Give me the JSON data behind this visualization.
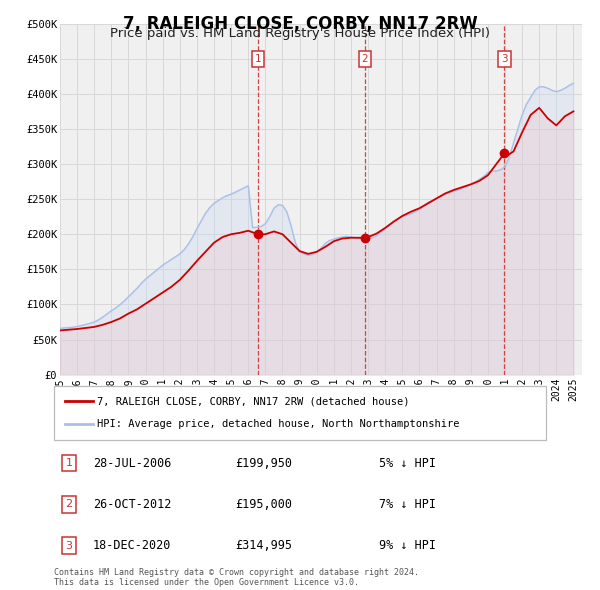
{
  "title": "7, RALEIGH CLOSE, CORBY, NN17 2RW",
  "subtitle": "Price paid vs. HM Land Registry's House Price Index (HPI)",
  "title_fontsize": 12,
  "subtitle_fontsize": 9.5,
  "xlim": [
    1995.0,
    2025.5
  ],
  "ylim": [
    0,
    500000
  ],
  "yticks": [
    0,
    50000,
    100000,
    150000,
    200000,
    250000,
    300000,
    350000,
    400000,
    450000,
    500000
  ],
  "ytick_labels": [
    "£0",
    "£50K",
    "£100K",
    "£150K",
    "£200K",
    "£250K",
    "£300K",
    "£350K",
    "£400K",
    "£450K",
    "£500K"
  ],
  "xticks": [
    1995,
    1996,
    1997,
    1998,
    1999,
    2000,
    2001,
    2002,
    2003,
    2004,
    2005,
    2006,
    2007,
    2008,
    2009,
    2010,
    2011,
    2012,
    2013,
    2014,
    2015,
    2016,
    2017,
    2018,
    2019,
    2020,
    2021,
    2022,
    2023,
    2024,
    2025
  ],
  "bg_color": "#ffffff",
  "plot_bg_color": "#f0f0f0",
  "grid_color": "#d8d8d8",
  "hpi_color": "#aabfe8",
  "hpi_fill_color": "#c8d8f0",
  "price_color": "#cc0000",
  "price_fill_color": "#f0c0c0",
  "sale_marker_color": "#cc0000",
  "vline_color": "#cc3333",
  "annotation_box_color": "#cc3333",
  "legend_label_price": "7, RALEIGH CLOSE, CORBY, NN17 2RW (detached house)",
  "legend_label_hpi": "HPI: Average price, detached house, North Northamptonshire",
  "sale_dates": [
    2006.57,
    2012.81,
    2020.96
  ],
  "sale_values": [
    199950,
    195000,
    314995
  ],
  "sale_labels": [
    "1",
    "2",
    "3"
  ],
  "sale_info": [
    {
      "label": "1",
      "date": "28-JUL-2006",
      "price": "£199,950",
      "diff": "5% ↓ HPI"
    },
    {
      "label": "2",
      "date": "26-OCT-2012",
      "price": "£195,000",
      "diff": "7% ↓ HPI"
    },
    {
      "label": "3",
      "date": "18-DEC-2020",
      "price": "£314,995",
      "diff": "9% ↓ HPI"
    }
  ],
  "footer": "Contains HM Land Registry data © Crown copyright and database right 2024.\nThis data is licensed under the Open Government Licence v3.0.",
  "hpi_x": [
    1995.0,
    1995.25,
    1995.5,
    1995.75,
    1996.0,
    1996.25,
    1996.5,
    1996.75,
    1997.0,
    1997.25,
    1997.5,
    1997.75,
    1998.0,
    1998.25,
    1998.5,
    1998.75,
    1999.0,
    1999.25,
    1999.5,
    1999.75,
    2000.0,
    2000.25,
    2000.5,
    2000.75,
    2001.0,
    2001.25,
    2001.5,
    2001.75,
    2002.0,
    2002.25,
    2002.5,
    2002.75,
    2003.0,
    2003.25,
    2003.5,
    2003.75,
    2004.0,
    2004.25,
    2004.5,
    2004.75,
    2005.0,
    2005.25,
    2005.5,
    2005.75,
    2006.0,
    2006.25,
    2006.5,
    2006.75,
    2007.0,
    2007.25,
    2007.5,
    2007.75,
    2008.0,
    2008.25,
    2008.5,
    2008.75,
    2009.0,
    2009.25,
    2009.5,
    2009.75,
    2010.0,
    2010.25,
    2010.5,
    2010.75,
    2011.0,
    2011.25,
    2011.5,
    2011.75,
    2012.0,
    2012.25,
    2012.5,
    2012.75,
    2013.0,
    2013.25,
    2013.5,
    2013.75,
    2014.0,
    2014.25,
    2014.5,
    2014.75,
    2015.0,
    2015.25,
    2015.5,
    2015.75,
    2016.0,
    2016.25,
    2016.5,
    2016.75,
    2017.0,
    2017.25,
    2017.5,
    2017.75,
    2018.0,
    2018.25,
    2018.5,
    2018.75,
    2019.0,
    2019.25,
    2019.5,
    2019.75,
    2020.0,
    2020.25,
    2020.5,
    2020.75,
    2021.0,
    2021.25,
    2021.5,
    2021.75,
    2022.0,
    2022.25,
    2022.5,
    2022.75,
    2023.0,
    2023.25,
    2023.5,
    2023.75,
    2024.0,
    2024.25,
    2024.5,
    2024.75,
    2025.0
  ],
  "hpi_y": [
    66000,
    66500,
    67000,
    67500,
    68500,
    70000,
    71500,
    73000,
    75000,
    78000,
    82000,
    86500,
    91000,
    95000,
    99500,
    105000,
    111000,
    117000,
    123000,
    130000,
    136000,
    141000,
    146000,
    151000,
    156000,
    160000,
    164000,
    168000,
    172000,
    178000,
    186000,
    196000,
    208000,
    219000,
    230000,
    238000,
    244000,
    248000,
    252000,
    255000,
    257000,
    260000,
    263000,
    266000,
    269000,
    209500,
    210000,
    211000,
    215000,
    225000,
    237000,
    242000,
    241000,
    232000,
    212000,
    188000,
    175000,
    172000,
    170000,
    171000,
    175000,
    180000,
    187000,
    191000,
    193000,
    195000,
    196000,
    197000,
    196000,
    195000,
    194000,
    193000,
    193000,
    195000,
    198000,
    203000,
    208000,
    213000,
    218000,
    222000,
    225000,
    227000,
    229000,
    232000,
    235000,
    240000,
    245000,
    248000,
    251000,
    254000,
    257000,
    259000,
    261000,
    263000,
    265000,
    268000,
    271000,
    274000,
    278000,
    282000,
    288000,
    290000,
    290000,
    292000,
    296000,
    310000,
    330000,
    350000,
    370000,
    385000,
    395000,
    405000,
    410000,
    410000,
    408000,
    405000,
    403000,
    405000,
    408000,
    412000,
    415000
  ],
  "price_x": [
    1995.0,
    1995.5,
    1996.0,
    1996.5,
    1997.0,
    1997.5,
    1998.0,
    1998.5,
    1999.0,
    1999.5,
    2000.0,
    2000.5,
    2001.0,
    2001.5,
    2002.0,
    2002.5,
    2003.0,
    2003.5,
    2004.0,
    2004.5,
    2005.0,
    2005.5,
    2006.0,
    2006.57,
    2007.0,
    2007.5,
    2008.0,
    2008.5,
    2009.0,
    2009.5,
    2010.0,
    2010.5,
    2011.0,
    2011.5,
    2012.0,
    2012.81,
    2013.0,
    2013.5,
    2014.0,
    2014.5,
    2015.0,
    2015.5,
    2016.0,
    2016.5,
    2017.0,
    2017.5,
    2018.0,
    2018.5,
    2019.0,
    2019.5,
    2020.0,
    2020.96,
    2021.0,
    2021.5,
    2022.0,
    2022.5,
    2023.0,
    2023.5,
    2024.0,
    2024.5,
    2025.0
  ],
  "price_y": [
    63000,
    64000,
    65000,
    66500,
    68000,
    71000,
    75000,
    80000,
    87000,
    93000,
    101000,
    109000,
    117000,
    125000,
    135000,
    148000,
    162000,
    175000,
    188000,
    196000,
    200000,
    202000,
    205000,
    199950,
    200000,
    204000,
    200000,
    188000,
    176000,
    172000,
    175000,
    182000,
    190000,
    194000,
    195000,
    195000,
    196000,
    201000,
    209000,
    218000,
    226000,
    232000,
    237000,
    244000,
    251000,
    258000,
    263000,
    267000,
    271000,
    276000,
    284000,
    314995,
    310000,
    318000,
    345000,
    370000,
    380000,
    365000,
    355000,
    368000,
    375000
  ]
}
